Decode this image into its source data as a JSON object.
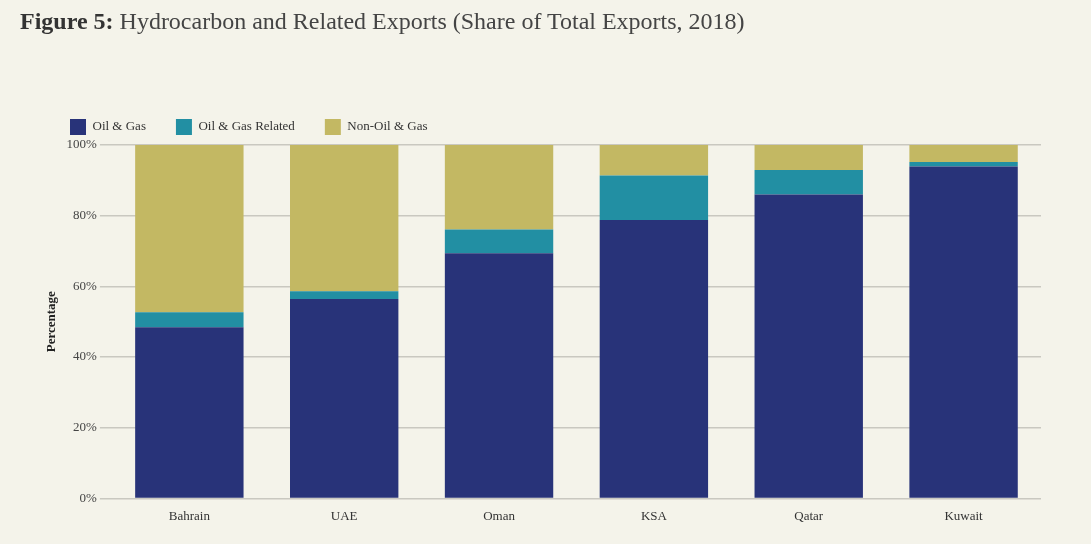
{
  "chart_data": {
    "type": "bar",
    "title": "Figure 5: Hydrocarbon and Related Exports (Share of Total Exports, 2018)",
    "ylabel": "Percentage",
    "categories": [
      "Bahrain",
      "UAE",
      "Oman",
      "KSA",
      "Qatar",
      "Kuwait"
    ],
    "stacked": true,
    "series": [
      {
        "name": "Oil & Gas",
        "color": "#283379",
        "values": [
          48.4,
          56.4,
          69.4,
          78.8,
          86.0,
          93.9
        ]
      },
      {
        "name": "Oil & Gas Related",
        "color": "#228fa3",
        "values": [
          4.3,
          2.2,
          6.7,
          12.6,
          6.9,
          1.3
        ]
      },
      {
        "name": "Non-Oil & Gas",
        "color": "#c3b863",
        "values": [
          47.3,
          41.4,
          23.9,
          8.6,
          7.1,
          4.8
        ]
      }
    ],
    "ylim": [
      0,
      100
    ],
    "yticks": [
      {
        "value": 0,
        "label": "0%"
      },
      {
        "value": 20,
        "label": "20%"
      },
      {
        "value": 40,
        "label": "40%"
      },
      {
        "value": 60,
        "label": "60%"
      },
      {
        "value": 80,
        "label": "80%"
      },
      {
        "value": 100,
        "label": "100%"
      }
    ],
    "grid": "y",
    "legend": "top left"
  }
}
